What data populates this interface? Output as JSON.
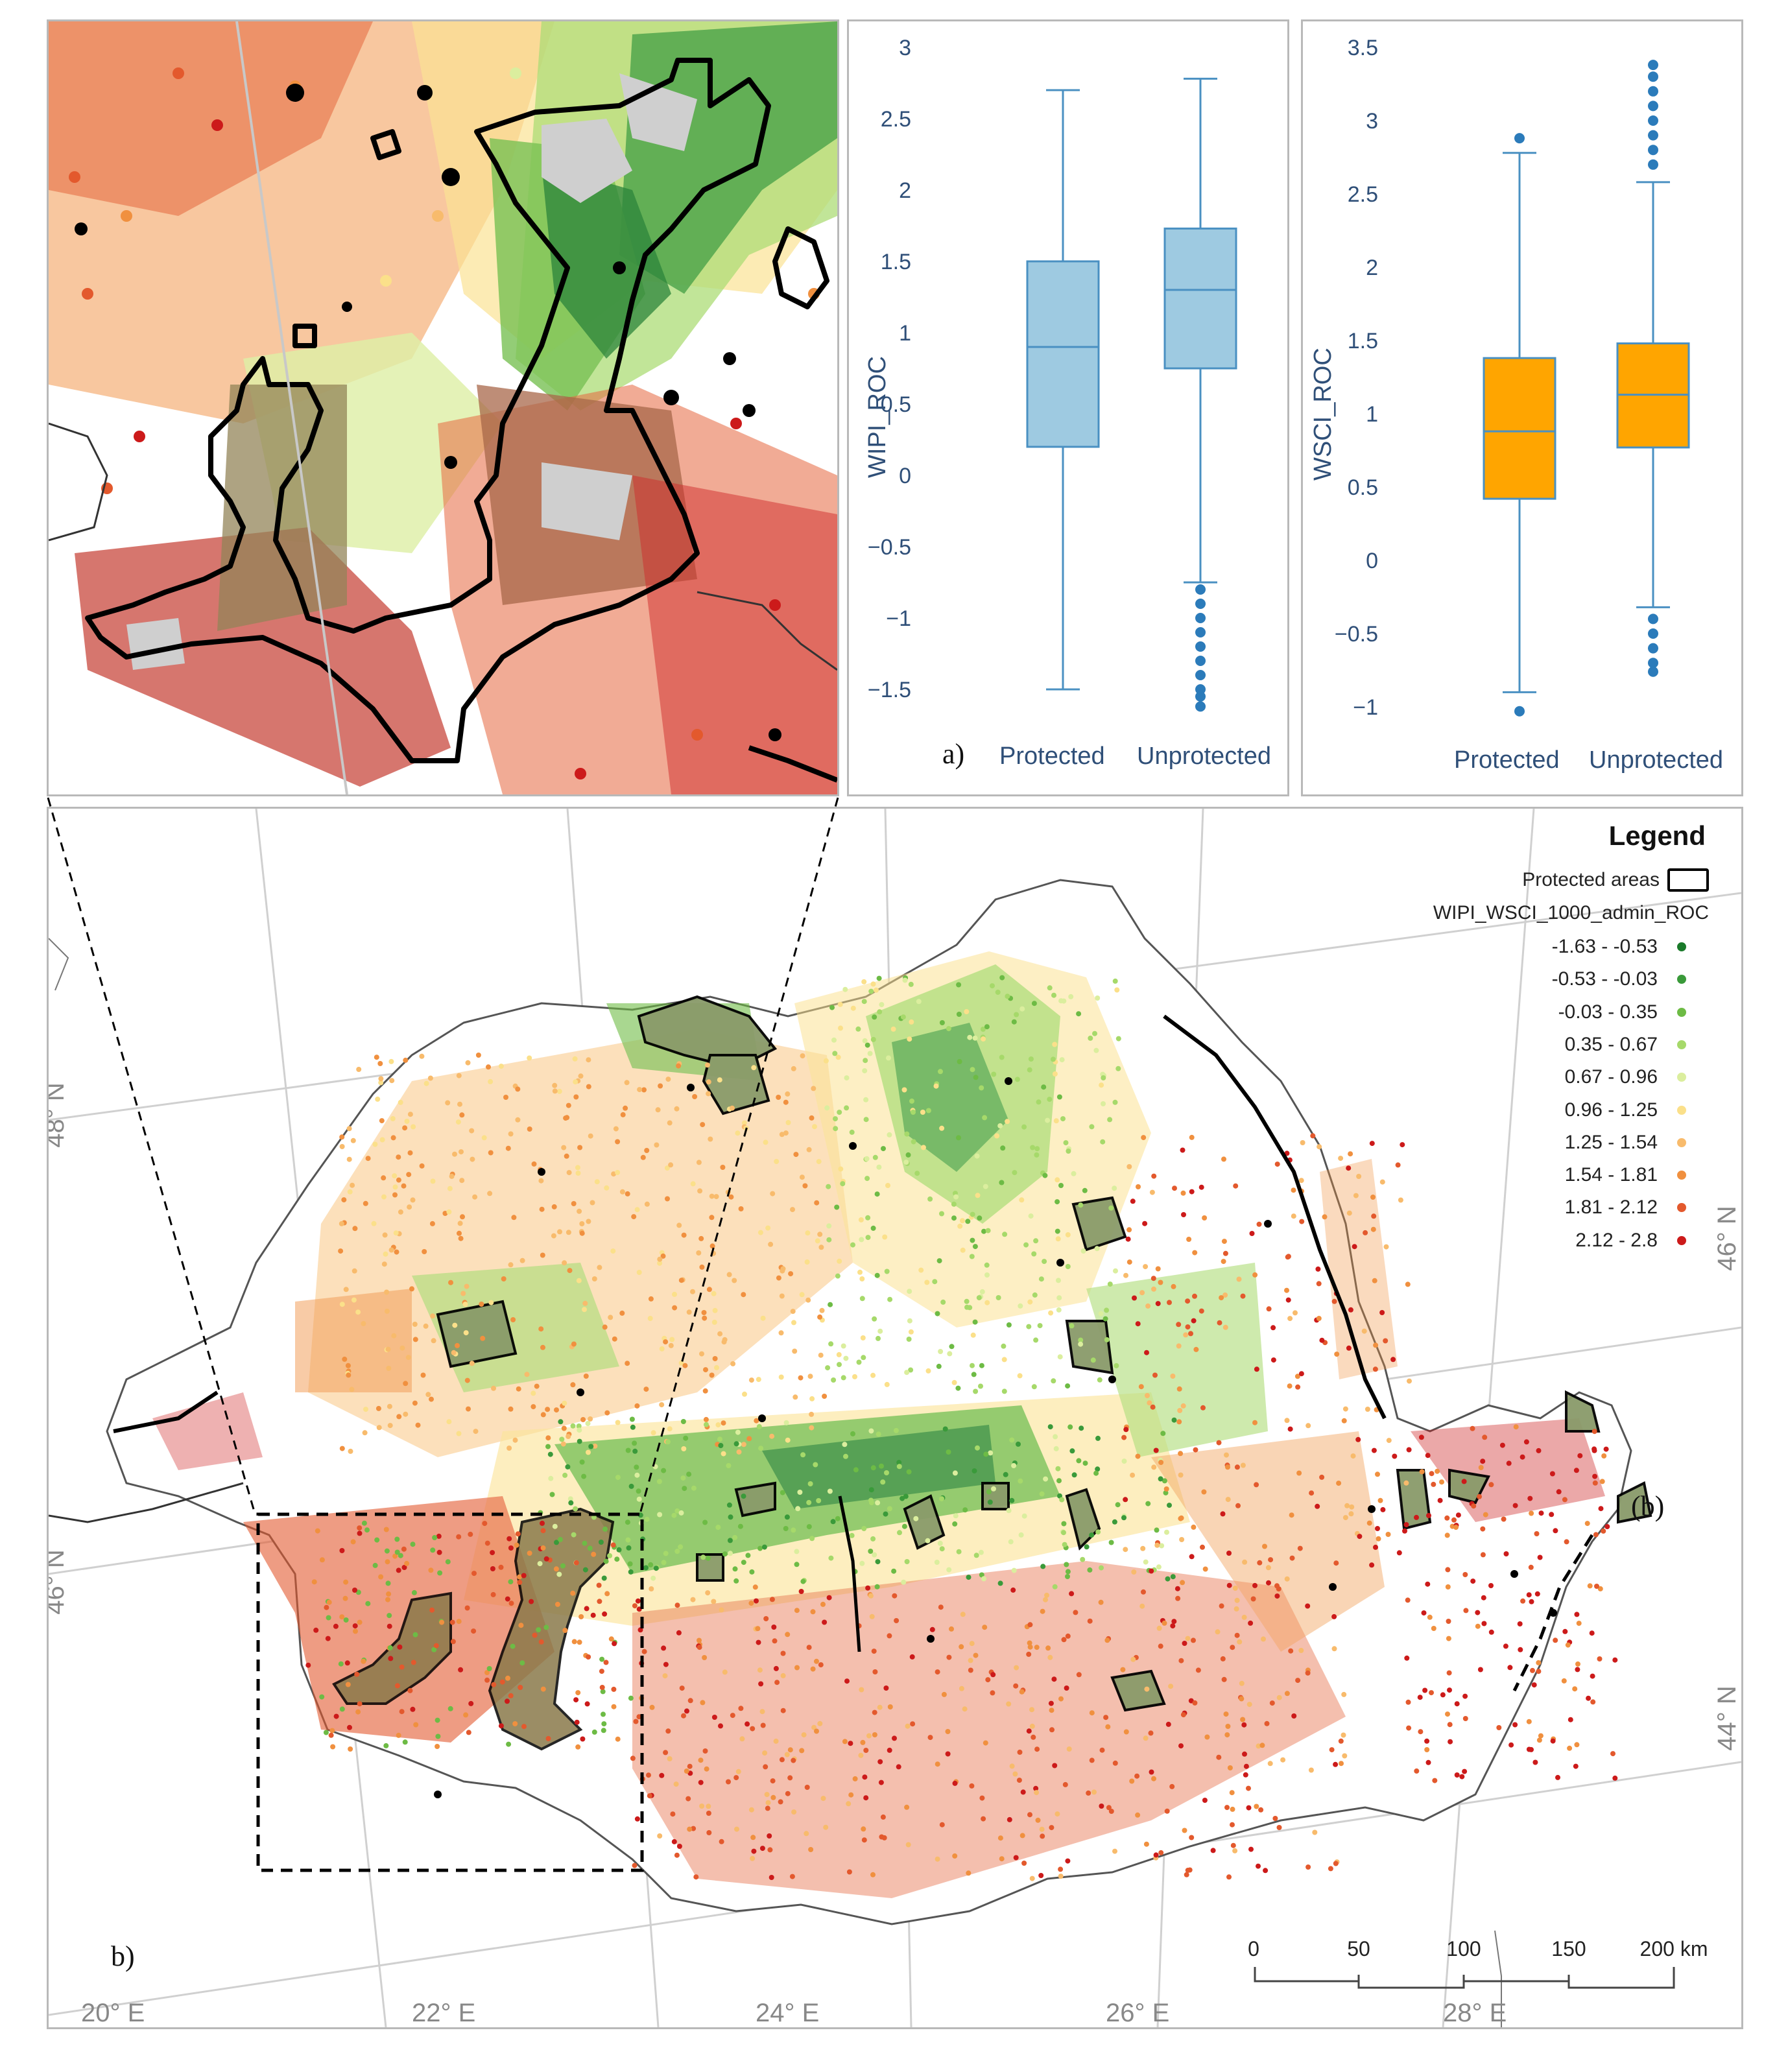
{
  "boxplot_wipi": {
    "ylabel": "WIPI_ROC",
    "ticks": [
      "3",
      "2.5",
      "2",
      "1.5",
      "1",
      "0.5",
      "0",
      "−0.5",
      "−1",
      "−1.5"
    ],
    "categories": [
      "Protected",
      "Unprotected"
    ],
    "panel_tag": "a)",
    "fill_color": "#9ecae1",
    "stroke_color": "#4a90c2",
    "boxes": [
      {
        "name": "Protected",
        "min": -1.5,
        "q1": 0.2,
        "median": 0.9,
        "q3": 1.5,
        "max": 2.7,
        "outliers": []
      },
      {
        "name": "Unprotected",
        "min": -0.75,
        "q1": 0.75,
        "median": 1.3,
        "q3": 1.73,
        "max": 2.78,
        "outliers": [
          -0.8,
          -0.9,
          -1.0,
          -1.1,
          -1.2,
          -1.3,
          -1.4,
          -1.5,
          -1.55,
          -1.62
        ]
      }
    ],
    "ylim": [
      -1.5,
      3
    ]
  },
  "boxplot_wsci": {
    "ylabel": "WSCI_ROC",
    "ticks": [
      "3.5",
      "3",
      "2.5",
      "2",
      "1.5",
      "1",
      "0.5",
      "0",
      "−0.5",
      "−1"
    ],
    "categories": [
      "Protected",
      "Unprotected"
    ],
    "fill_color": "#ffa500",
    "stroke_color": "#4a90c2",
    "boxes": [
      {
        "name": "Protected",
        "min": -0.9,
        "q1": 0.42,
        "median": 0.88,
        "q3": 1.38,
        "max": 2.78,
        "outliers": [
          2.88,
          -1.03
        ]
      },
      {
        "name": "Unprotected",
        "min": -0.32,
        "q1": 0.77,
        "median": 1.13,
        "q3": 1.48,
        "max": 2.58,
        "outliers": [
          2.7,
          2.8,
          2.9,
          3.0,
          3.1,
          3.2,
          3.3,
          3.38,
          -0.4,
          -0.5,
          -0.6,
          -0.7,
          -0.76
        ]
      }
    ],
    "ylim": [
      -1,
      3.5
    ]
  },
  "legend": {
    "title": "Legend",
    "protected_label": "Protected areas",
    "layer_name": "WIPI_WSCI_1000_admin_ROC",
    "classes": [
      {
        "label": "-1.63 - -0.53",
        "color": "#1a7a2a"
      },
      {
        "label": "-0.53 - -0.03",
        "color": "#3a9a3a"
      },
      {
        "label": "-0.03 - 0.35",
        "color": "#6dbb45"
      },
      {
        "label": "0.35 - 0.67",
        "color": "#a6d96a"
      },
      {
        "label": "0.67 - 0.96",
        "color": "#dbee9e"
      },
      {
        "label": "0.96 - 1.25",
        "color": "#fbe08a"
      },
      {
        "label": "1.25 - 1.54",
        "color": "#f8bb6c"
      },
      {
        "label": "1.54 - 1.81",
        "color": "#f0903f"
      },
      {
        "label": "1.81 - 2.12",
        "color": "#e3592d"
      },
      {
        "label": "2.12 - 2.8",
        "color": "#cc1a1a"
      }
    ]
  },
  "map": {
    "panel_tag_main": "b)",
    "panel_tag_delta": "(b)",
    "graticule": {
      "bottom": [
        "20° E",
        "22° E",
        "24° E",
        "26° E",
        "28° E"
      ],
      "left": [
        "48° N",
        "46° N"
      ],
      "right": [
        "46° N",
        "44° N"
      ]
    },
    "scalebar": {
      "labels": [
        "0",
        "50",
        "100",
        "150",
        "200 km"
      ]
    }
  }
}
